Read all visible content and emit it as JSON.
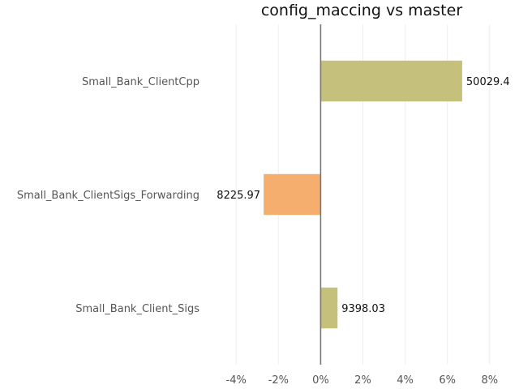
{
  "chart_data": {
    "type": "bar",
    "orientation": "horizontal",
    "title": "config_maccing vs master",
    "categories": [
      "Small_Bank_ClientCpp",
      "Small_Bank_ClientSigs_Forwarding",
      "Small_Bank_Client_Sigs"
    ],
    "values": [
      6.7,
      -2.7,
      0.8
    ],
    "data_labels": [
      "50029.4",
      "8225.97",
      "9398.03"
    ],
    "colors": [
      "#c5c07b",
      "#f6ae6f",
      "#c5c07b"
    ],
    "xlim": [
      -4.2,
      8.7
    ],
    "xticks": [
      -4,
      -2,
      0,
      2,
      4,
      6,
      8
    ],
    "xtick_labels": [
      "-4%",
      "-2%",
      "0%",
      "2%",
      "4%",
      "6%",
      "8%"
    ],
    "xlabel": "",
    "ylabel": "",
    "grid": true,
    "legend": "none"
  }
}
